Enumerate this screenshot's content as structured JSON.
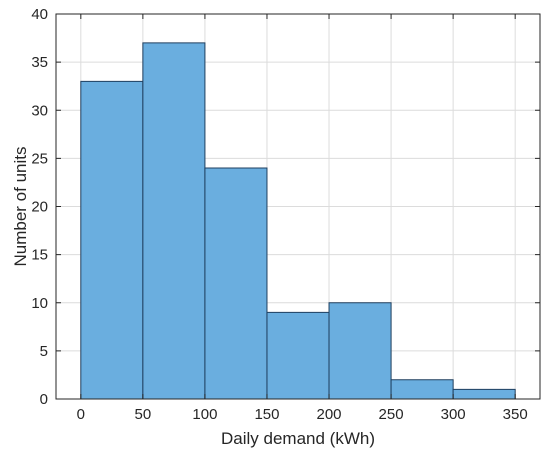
{
  "chart_data": {
    "type": "bar",
    "subtype": "histogram",
    "bin_edges": [
      0,
      50,
      100,
      150,
      200,
      250,
      300,
      350
    ],
    "values": [
      33,
      37,
      24,
      9,
      10,
      2,
      1
    ],
    "xlabel": "Daily demand (kWh)",
    "ylabel": "Number of units",
    "xlim": [
      -20,
      370
    ],
    "ylim": [
      0,
      40
    ],
    "xticks": [
      0,
      50,
      100,
      150,
      200,
      250,
      300,
      350
    ],
    "yticks": [
      0,
      5,
      10,
      15,
      20,
      25,
      30,
      35,
      40
    ],
    "grid": true,
    "bar_color": "#6aaedf",
    "edge_color": "#1f3f5f"
  }
}
